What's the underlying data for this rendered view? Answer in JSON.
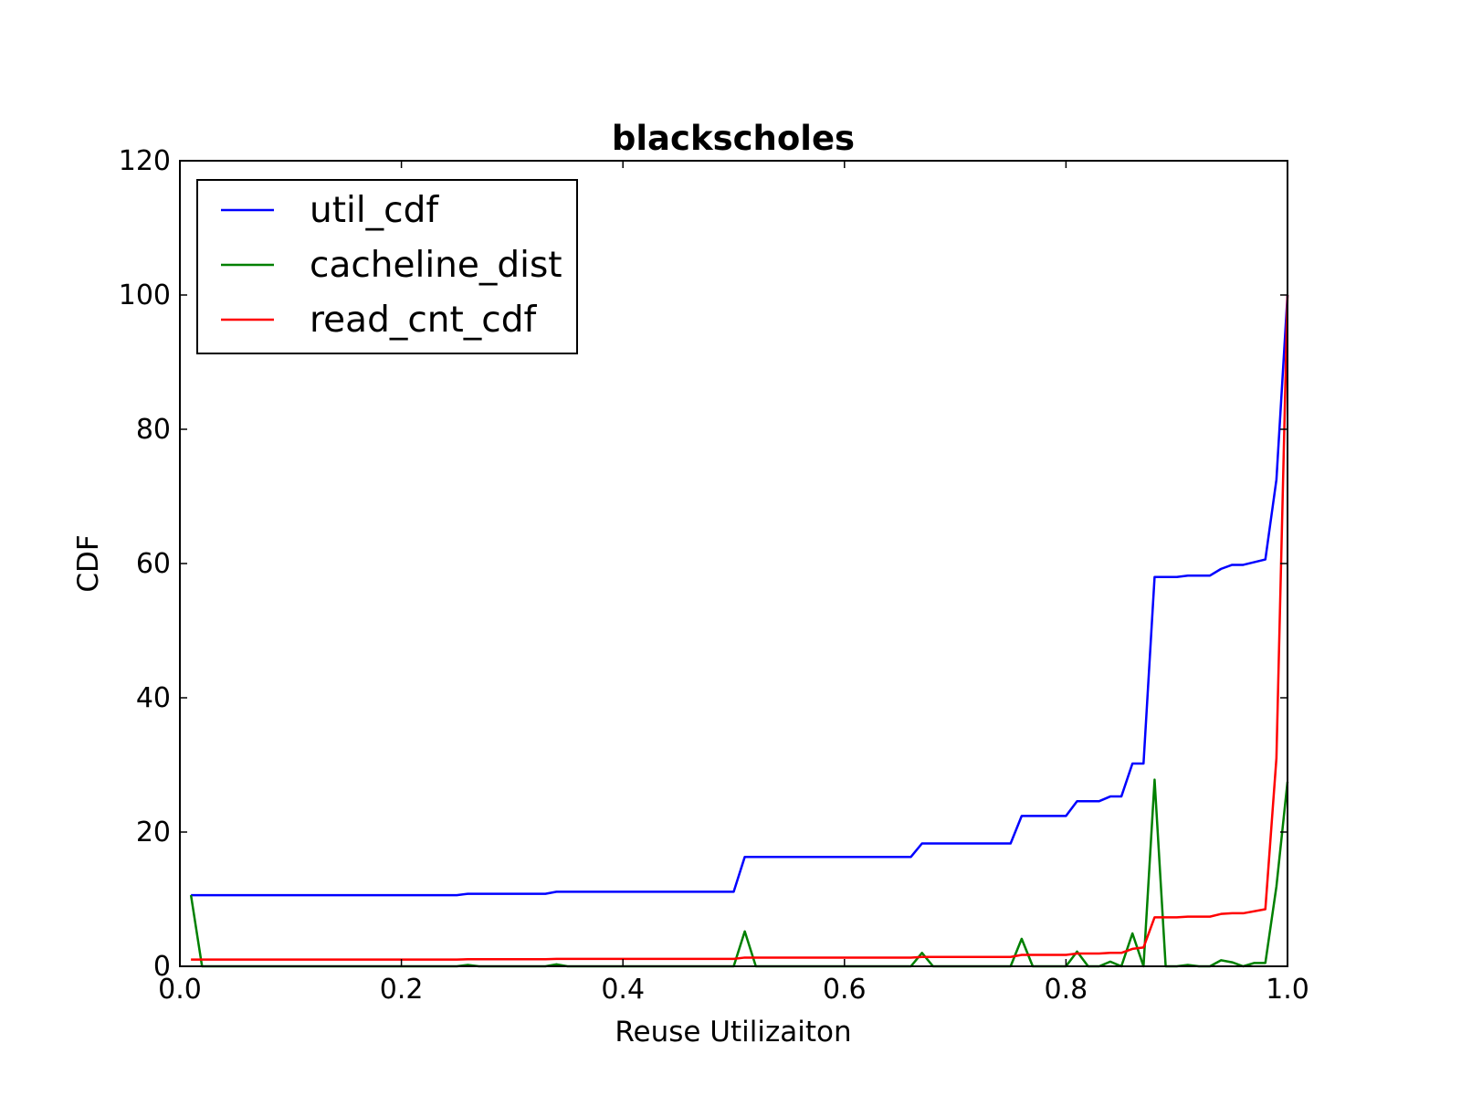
{
  "chart_data": {
    "type": "line",
    "title": "blackscholes",
    "xlabel": "Reuse Utilizaiton",
    "ylabel": "CDF",
    "xlim": [
      0.0,
      1.0
    ],
    "ylim": [
      0,
      120
    ],
    "xticks": [
      0.0,
      0.2,
      0.4,
      0.6,
      0.8,
      1.0
    ],
    "xtick_labels": [
      "0.0",
      "0.2",
      "0.4",
      "0.6",
      "0.8",
      "1.0"
    ],
    "yticks": [
      0,
      20,
      40,
      60,
      80,
      100,
      120
    ],
    "ytick_labels": [
      "0",
      "20",
      "40",
      "60",
      "80",
      "100",
      "120"
    ],
    "grid": false,
    "legend_position": "top-left",
    "series": [
      {
        "name": "util_cdf",
        "color": "#0000ff",
        "x": [
          0.01,
          0.25,
          0.26,
          0.33,
          0.34,
          0.5,
          0.51,
          0.66,
          0.67,
          0.75,
          0.76,
          0.8,
          0.81,
          0.83,
          0.84,
          0.85,
          0.86,
          0.87,
          0.88,
          0.9,
          0.91,
          0.93,
          0.94,
          0.95,
          0.96,
          0.98,
          0.99,
          1.0
        ],
        "y": [
          10.6,
          10.6,
          10.8,
          10.8,
          11.1,
          11.1,
          16.3,
          16.3,
          18.3,
          18.3,
          22.4,
          22.4,
          24.6,
          24.6,
          25.3,
          25.3,
          30.2,
          30.2,
          58.0,
          58.0,
          58.2,
          58.2,
          59.2,
          59.8,
          59.8,
          60.6,
          72.5,
          100.0
        ]
      },
      {
        "name": "cacheline_dist",
        "color": "#008000",
        "x": [
          0.01,
          0.02,
          0.25,
          0.26,
          0.27,
          0.33,
          0.34,
          0.35,
          0.5,
          0.51,
          0.52,
          0.66,
          0.67,
          0.68,
          0.75,
          0.76,
          0.77,
          0.8,
          0.81,
          0.82,
          0.83,
          0.84,
          0.85,
          0.86,
          0.87,
          0.88,
          0.89,
          0.9,
          0.91,
          0.92,
          0.93,
          0.94,
          0.95,
          0.96,
          0.97,
          0.98,
          0.99,
          1.0
        ],
        "y": [
          10.6,
          0.0,
          0.0,
          0.2,
          0.0,
          0.0,
          0.3,
          0.0,
          0.0,
          5.2,
          0.0,
          0.0,
          2.0,
          0.0,
          0.0,
          4.1,
          0.0,
          0.0,
          2.2,
          0.0,
          0.0,
          0.7,
          0.0,
          4.9,
          0.0,
          27.8,
          0.0,
          0.0,
          0.2,
          0.0,
          0.0,
          0.9,
          0.6,
          0.0,
          0.5,
          0.5,
          11.9,
          27.5
        ]
      },
      {
        "name": "read_cnt_cdf",
        "color": "#ff0000",
        "x": [
          0.01,
          0.25,
          0.26,
          0.33,
          0.34,
          0.5,
          0.51,
          0.66,
          0.67,
          0.75,
          0.76,
          0.8,
          0.81,
          0.83,
          0.84,
          0.85,
          0.86,
          0.87,
          0.88,
          0.9,
          0.91,
          0.93,
          0.94,
          0.95,
          0.96,
          0.98,
          0.99,
          1.0
        ],
        "y": [
          1.0,
          1.0,
          1.05,
          1.05,
          1.1,
          1.1,
          1.3,
          1.3,
          1.4,
          1.4,
          1.7,
          1.7,
          1.9,
          1.9,
          2.0,
          2.0,
          2.6,
          2.8,
          7.3,
          7.3,
          7.4,
          7.4,
          7.8,
          7.9,
          7.9,
          8.5,
          31.0,
          100.0
        ]
      }
    ]
  }
}
